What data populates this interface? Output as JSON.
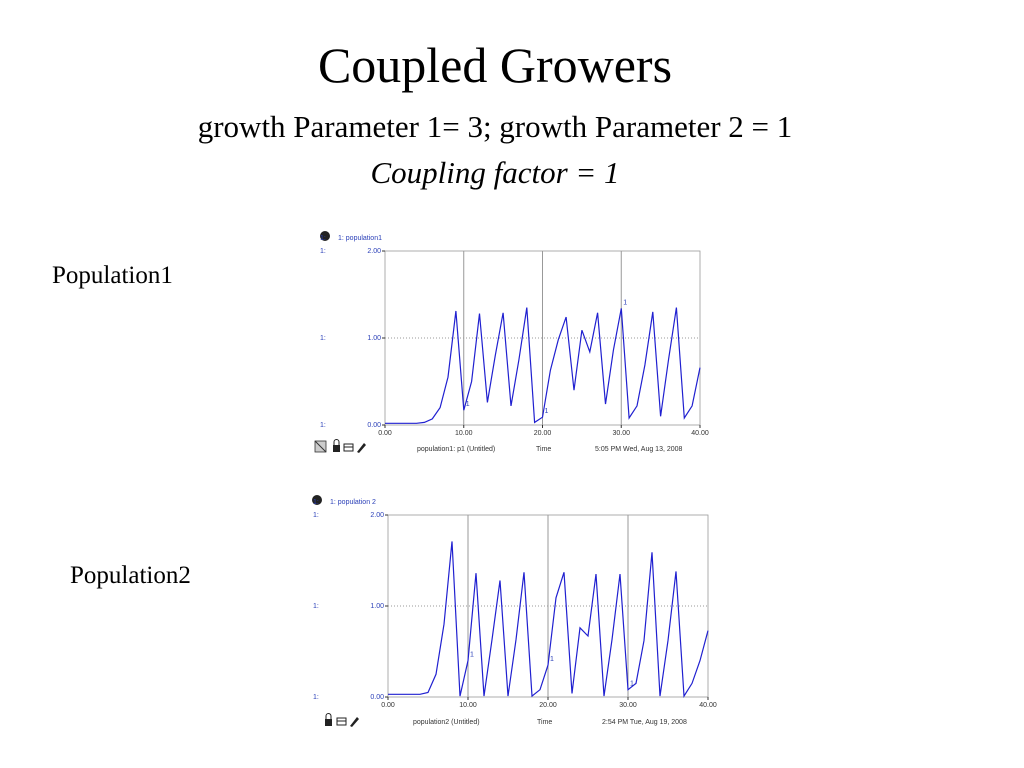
{
  "slide": {
    "title": "Coupled Growers",
    "subtitle": "growth Parameter 1= 3; growth Parameter 2 = 1",
    "note": "Coupling factor = 1",
    "labels": [
      "Population1",
      "Population2"
    ]
  },
  "chart_data": [
    {
      "type": "line",
      "axis_prefix": "1:",
      "series_marker": "1",
      "footer_label": "population1: p1 (Untitled)",
      "xlabel": "Time",
      "timestamp": "5:05 PM  Wed, Aug 13, 2008",
      "x": [
        0,
        1,
        2,
        3,
        4,
        5,
        6,
        7,
        8,
        9,
        10,
        11,
        12,
        13,
        14,
        15,
        16,
        17,
        18,
        19,
        20,
        21,
        22,
        23,
        24,
        25,
        26,
        27,
        28,
        29,
        30,
        31,
        32,
        33,
        34,
        35,
        36,
        37,
        38,
        39,
        40
      ],
      "series": [
        {
          "name": "1: population1",
          "color": "#2020d0",
          "values": [
            0.02,
            0.02,
            0.02,
            0.02,
            0.02,
            0.03,
            0.07,
            0.2,
            0.55,
            1.31,
            0.17,
            0.5,
            1.28,
            0.26,
            0.8,
            1.29,
            0.22,
            0.75,
            1.35,
            0.03,
            0.09,
            0.63,
            0.98,
            1.24,
            0.4,
            1.09,
            0.84,
            1.29,
            0.24,
            0.86,
            1.34,
            0.08,
            0.22,
            0.69,
            1.3,
            0.1,
            0.75,
            1.35,
            0.08,
            0.22,
            0.66
          ]
        }
      ],
      "xlim": [
        0,
        40
      ],
      "xticks": [
        {
          "value": 0,
          "label": "0.00"
        },
        {
          "value": 10,
          "label": "10.00"
        },
        {
          "value": 20,
          "label": "20.00"
        },
        {
          "value": 30,
          "label": "30.00"
        },
        {
          "value": 40,
          "label": "40.00"
        }
      ],
      "ylim": [
        0,
        2
      ],
      "yticks": [
        {
          "value": 0,
          "label": "0.00"
        },
        {
          "value": 1,
          "label": "1.00"
        },
        {
          "value": 2,
          "label": "2.00"
        }
      ],
      "grid": true
    },
    {
      "type": "line",
      "axis_prefix": "1:",
      "series_marker": "1",
      "footer_label": "population2 (Untitled)",
      "xlabel": "Time",
      "timestamp": "2:54 PM  Tue, Aug 19, 2008",
      "x": [
        0,
        1,
        2,
        3,
        4,
        5,
        6,
        7,
        8,
        9,
        10,
        11,
        12,
        13,
        14,
        15,
        16,
        17,
        18,
        19,
        20,
        21,
        22,
        23,
        24,
        25,
        26,
        27,
        28,
        29,
        30,
        31,
        32,
        33,
        34,
        35,
        36,
        37,
        38,
        39,
        40
      ],
      "series": [
        {
          "name": "1: population 2",
          "color": "#2020d0",
          "values": [
            0.03,
            0.03,
            0.03,
            0.03,
            0.03,
            0.05,
            0.25,
            0.8,
            1.71,
            0.01,
            0.4,
            1.36,
            0.01,
            0.63,
            1.28,
            0.01,
            0.63,
            1.37,
            0.01,
            0.08,
            0.35,
            1.09,
            1.37,
            0.04,
            0.76,
            0.67,
            1.35,
            0.01,
            0.63,
            1.35,
            0.08,
            0.15,
            0.62,
            1.59,
            0.01,
            0.62,
            1.38,
            0.01,
            0.15,
            0.4,
            0.73
          ]
        }
      ],
      "xlim": [
        0,
        40
      ],
      "xticks": [
        {
          "value": 0,
          "label": "0.00"
        },
        {
          "value": 10,
          "label": "10.00"
        },
        {
          "value": 20,
          "label": "20.00"
        },
        {
          "value": 30,
          "label": "30.00"
        },
        {
          "value": 40,
          "label": "40.00"
        }
      ],
      "ylim": [
        0,
        2
      ],
      "yticks": [
        {
          "value": 0,
          "label": "0.00"
        },
        {
          "value": 1,
          "label": "1.00"
        },
        {
          "value": 2,
          "label": "2.00"
        }
      ],
      "grid": true
    }
  ]
}
